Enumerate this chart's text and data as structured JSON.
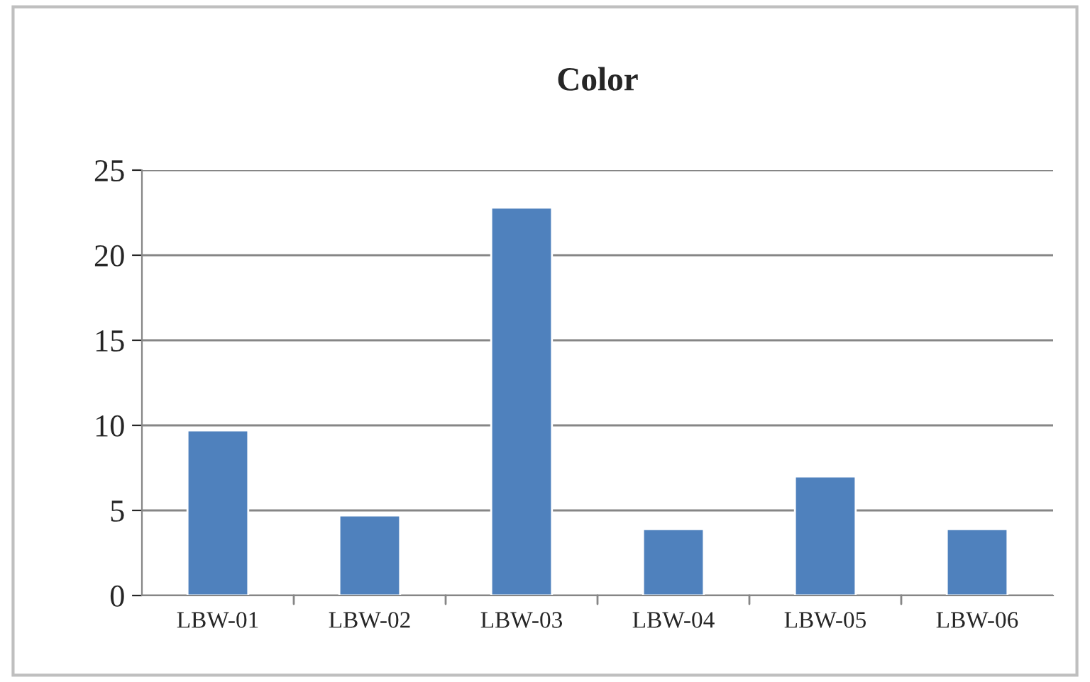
{
  "chart_data": {
    "type": "bar",
    "title": "Color",
    "categories": [
      "LBW-01",
      "LBW-02",
      "LBW-03",
      "LBW-04",
      "LBW-05",
      "LBW-06"
    ],
    "values": [
      9.7,
      4.7,
      22.8,
      3.9,
      7.0,
      3.9
    ],
    "color": "#4f81bd",
    "ylim": [
      0,
      25
    ],
    "yticks": [
      0,
      5,
      10,
      15,
      20,
      25
    ],
    "grid": "y",
    "legend": false
  }
}
